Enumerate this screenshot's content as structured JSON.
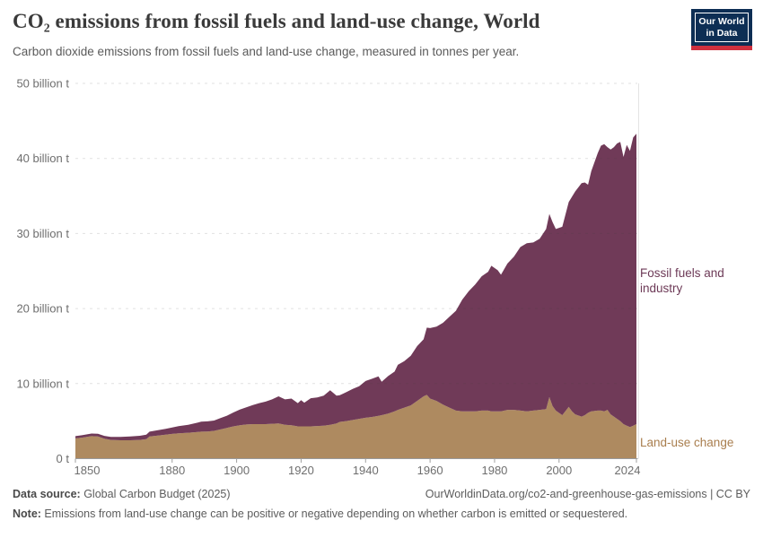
{
  "header": {
    "title": "CO₂ emissions from fossil fuels and land-use change, World",
    "subtitle": "Carbon dioxide emissions from fossil fuels and land-use change, measured in tonnes per year.",
    "logo": {
      "line1": "Our World",
      "line2": "in Data",
      "bg_color": "#0d2e54",
      "accent_color": "#cf303e"
    }
  },
  "chart_data": {
    "type": "area",
    "stacked": true,
    "title": "CO₂ emissions from fossil fuels and land-use change, World",
    "y_unit": "billion t CO₂ per year",
    "x_range": [
      1850,
      2024
    ],
    "y_range": [
      0,
      50
    ],
    "grid": true,
    "gridline_style": "dashed",
    "legend_position": "right-annotations",
    "x": [
      1850,
      1852,
      1855,
      1857,
      1859,
      1861,
      1864,
      1867,
      1870,
      1872,
      1873,
      1875,
      1878,
      1880,
      1882,
      1885,
      1888,
      1889,
      1891,
      1893,
      1895,
      1897,
      1899,
      1901,
      1903,
      1905,
      1907,
      1909,
      1911,
      1913,
      1915,
      1917,
      1919,
      1920,
      1921,
      1923,
      1925,
      1927,
      1929,
      1931,
      1932,
      1934,
      1936,
      1938,
      1940,
      1942,
      1944,
      1945,
      1947,
      1949,
      1950,
      1952,
      1954,
      1956,
      1958,
      1959,
      1960,
      1962,
      1964,
      1966,
      1968,
      1970,
      1972,
      1974,
      1976,
      1978,
      1979,
      1981,
      1982,
      1984,
      1986,
      1988,
      1990,
      1992,
      1994,
      1996,
      1997,
      1998,
      1999,
      2001,
      2003,
      2004,
      2005,
      2007,
      2008,
      2009,
      2010,
      2012,
      2013,
      2014,
      2015,
      2016,
      2017,
      2018,
      2019,
      2020,
      2021,
      2022,
      2023,
      2024
    ],
    "series": [
      {
        "name": "Land-use change",
        "color": "#AE8A60",
        "label_color": "#a97e4e",
        "values": [
          2.7,
          2.8,
          3.0,
          2.95,
          2.65,
          2.5,
          2.45,
          2.45,
          2.5,
          2.6,
          2.95,
          3.05,
          3.2,
          3.3,
          3.38,
          3.45,
          3.55,
          3.6,
          3.62,
          3.7,
          3.9,
          4.1,
          4.3,
          4.45,
          4.55,
          4.6,
          4.6,
          4.6,
          4.65,
          4.7,
          4.5,
          4.45,
          4.3,
          4.3,
          4.3,
          4.3,
          4.35,
          4.4,
          4.5,
          4.7,
          4.9,
          5.0,
          5.15,
          5.3,
          5.45,
          5.55,
          5.7,
          5.8,
          6.0,
          6.3,
          6.5,
          6.8,
          7.1,
          7.7,
          8.3,
          8.5,
          8.0,
          7.7,
          7.2,
          6.8,
          6.4,
          6.3,
          6.3,
          6.3,
          6.4,
          6.4,
          6.3,
          6.3,
          6.3,
          6.5,
          6.5,
          6.4,
          6.3,
          6.4,
          6.5,
          6.6,
          8.2,
          7.0,
          6.4,
          5.8,
          6.9,
          6.3,
          5.9,
          5.6,
          5.8,
          6.1,
          6.3,
          6.4,
          6.4,
          6.3,
          6.5,
          5.9,
          5.6,
          5.3,
          5.0,
          4.6,
          4.4,
          4.2,
          4.4,
          4.6
        ]
      },
      {
        "name": "Fossil fuels and industry",
        "color": "#703A58",
        "label_color": "#6d3a57",
        "values": [
          0.3,
          0.32,
          0.35,
          0.36,
          0.38,
          0.4,
          0.45,
          0.5,
          0.55,
          0.6,
          0.65,
          0.7,
          0.78,
          0.85,
          0.95,
          1.05,
          1.25,
          1.32,
          1.35,
          1.38,
          1.5,
          1.62,
          1.85,
          2.1,
          2.3,
          2.55,
          2.8,
          3.0,
          3.25,
          3.6,
          3.4,
          3.55,
          3.1,
          3.5,
          3.15,
          3.75,
          3.8,
          4.0,
          4.6,
          3.7,
          3.55,
          3.85,
          4.15,
          4.35,
          4.9,
          5.1,
          5.25,
          4.45,
          5.0,
          5.3,
          6.0,
          6.2,
          6.6,
          7.3,
          7.6,
          8.95,
          9.4,
          9.9,
          10.9,
          12.1,
          13.3,
          14.9,
          16.0,
          16.9,
          17.9,
          18.5,
          19.4,
          18.8,
          18.2,
          19.5,
          20.4,
          21.8,
          22.4,
          22.4,
          22.8,
          24.0,
          24.4,
          24.5,
          24.2,
          25.1,
          27.3,
          28.6,
          29.7,
          31.1,
          31.0,
          30.4,
          32.0,
          34.3,
          35.3,
          35.6,
          35.0,
          35.3,
          35.9,
          36.7,
          37.2,
          35.6,
          37.4,
          36.8,
          38.4,
          38.7
        ]
      }
    ],
    "y_ticks": [
      {
        "value": 0,
        "label": "0 t"
      },
      {
        "value": 10,
        "label": "10 billion t"
      },
      {
        "value": 20,
        "label": "20 billion t"
      },
      {
        "value": 30,
        "label": "30 billion t"
      },
      {
        "value": 40,
        "label": "40 billion t"
      },
      {
        "value": 50,
        "label": "50 billion t"
      }
    ],
    "x_ticks": [
      {
        "year": 1850,
        "label": "1850"
      },
      {
        "year": 1880,
        "label": "1880"
      },
      {
        "year": 1900,
        "label": "1900"
      },
      {
        "year": 1920,
        "label": "1920"
      },
      {
        "year": 1940,
        "label": "1940"
      },
      {
        "year": 1960,
        "label": "1960"
      },
      {
        "year": 1980,
        "label": "1980"
      },
      {
        "year": 2000,
        "label": "2000"
      },
      {
        "year": 2024,
        "label": "2024"
      }
    ]
  },
  "footer": {
    "datasource_label": "Data source:",
    "datasource_value": " Global Carbon Budget (2025)",
    "link": "OurWorldinData.org/co2-and-greenhouse-gas-emissions | CC BY",
    "note_label": "Note:",
    "note_text": " Emissions from land-use change can be positive or negative depending on whether carbon is emitted or sequestered."
  }
}
